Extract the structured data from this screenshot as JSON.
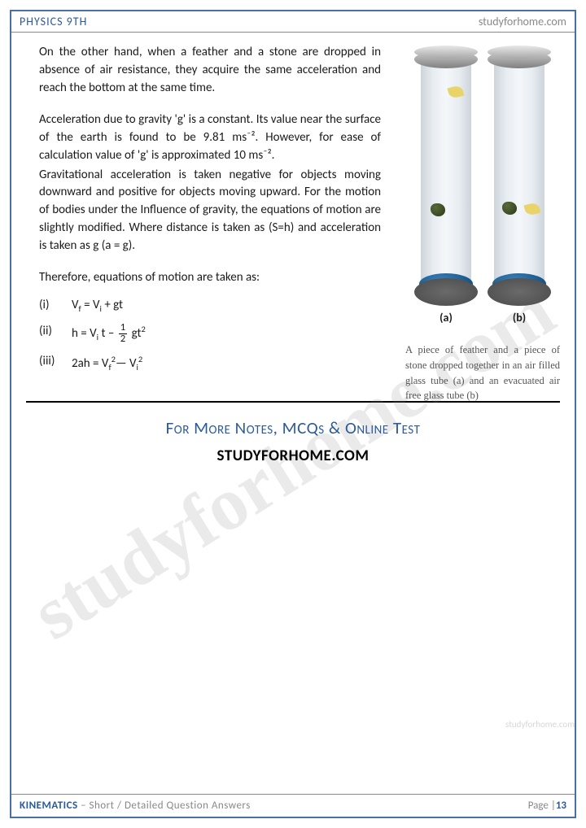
{
  "header": {
    "left": "PHYSICS 9TH",
    "right": "studyforhome.com"
  },
  "paragraphs": {
    "p1": "On the other hand, when a feather and a stone are dropped in absence of air resistance, they acquire the same acceleration and reach the bottom at the same time.",
    "p2": "Acceleration due to gravity 'g' is a constant. Its value near the surface of the earth is found to be 9.81 ms⁻². However, for ease of calculation value of 'g' is approximated 10 ms⁻².",
    "p3": "Gravitational acceleration is taken negative for objects moving downward and positive for objects moving upward. For the motion of bodies under the Influence of gravity, the equations of motion are slightly modified. Where distance is taken as (S=h) and acceleration is taken as g (a = g).",
    "intro": "Therefore, equations of motion are taken as:"
  },
  "equations": {
    "e1": {
      "num": "(i)",
      "lhs": "V",
      "lsub": "f",
      "mid": " = V",
      "rsub": "i",
      "tail": " + gt"
    },
    "e2": {
      "num": "(ii)",
      "pre": "h = V",
      "sub": "i",
      "mid": " t – ",
      "fn": "1",
      "fd": "2",
      "post": " gt",
      "sup": "2"
    },
    "e3": {
      "num": "(iii)",
      "text": "2ah = V",
      "s1": "f",
      "sq1": "2",
      "dash": "— V",
      "s2": "i",
      "sq2": "2"
    }
  },
  "figure": {
    "labelA": "(a)",
    "labelB": "(b)",
    "caption": "A piece of feather and a piece of stone dropped together in an air filled glass tube (a) and an evacuated air free glass tube (b)",
    "colors": {
      "tubeLight": "#e8edf2",
      "tubeDark": "#cdd4da",
      "cap": "#808080",
      "base": "#4a4a4a",
      "disc": "#1a5a8a",
      "feather": "#e8d468",
      "stone": "#2a3a1a"
    }
  },
  "promo": {
    "line1": "For More Notes, MCQs & Online Test",
    "line2": "STUDYFORHOME.COM"
  },
  "watermark": {
    "main": "studyforhome.com",
    "side": "studyforhome.com"
  },
  "footer": {
    "topic": "KINEMATICS",
    "subtitle": " – Short / Detailed Question Answers",
    "pageLabel": "Page |",
    "pageNum": "13"
  },
  "styling": {
    "borderColor": "#4a6fa5",
    "accentColor": "#2a5a9a",
    "textColor": "#1a1a1a",
    "mutedColor": "#888",
    "bodyFontSize": 15,
    "captionFontSize": 12.5,
    "pageWidth": 720,
    "pageHeight": 1018
  }
}
